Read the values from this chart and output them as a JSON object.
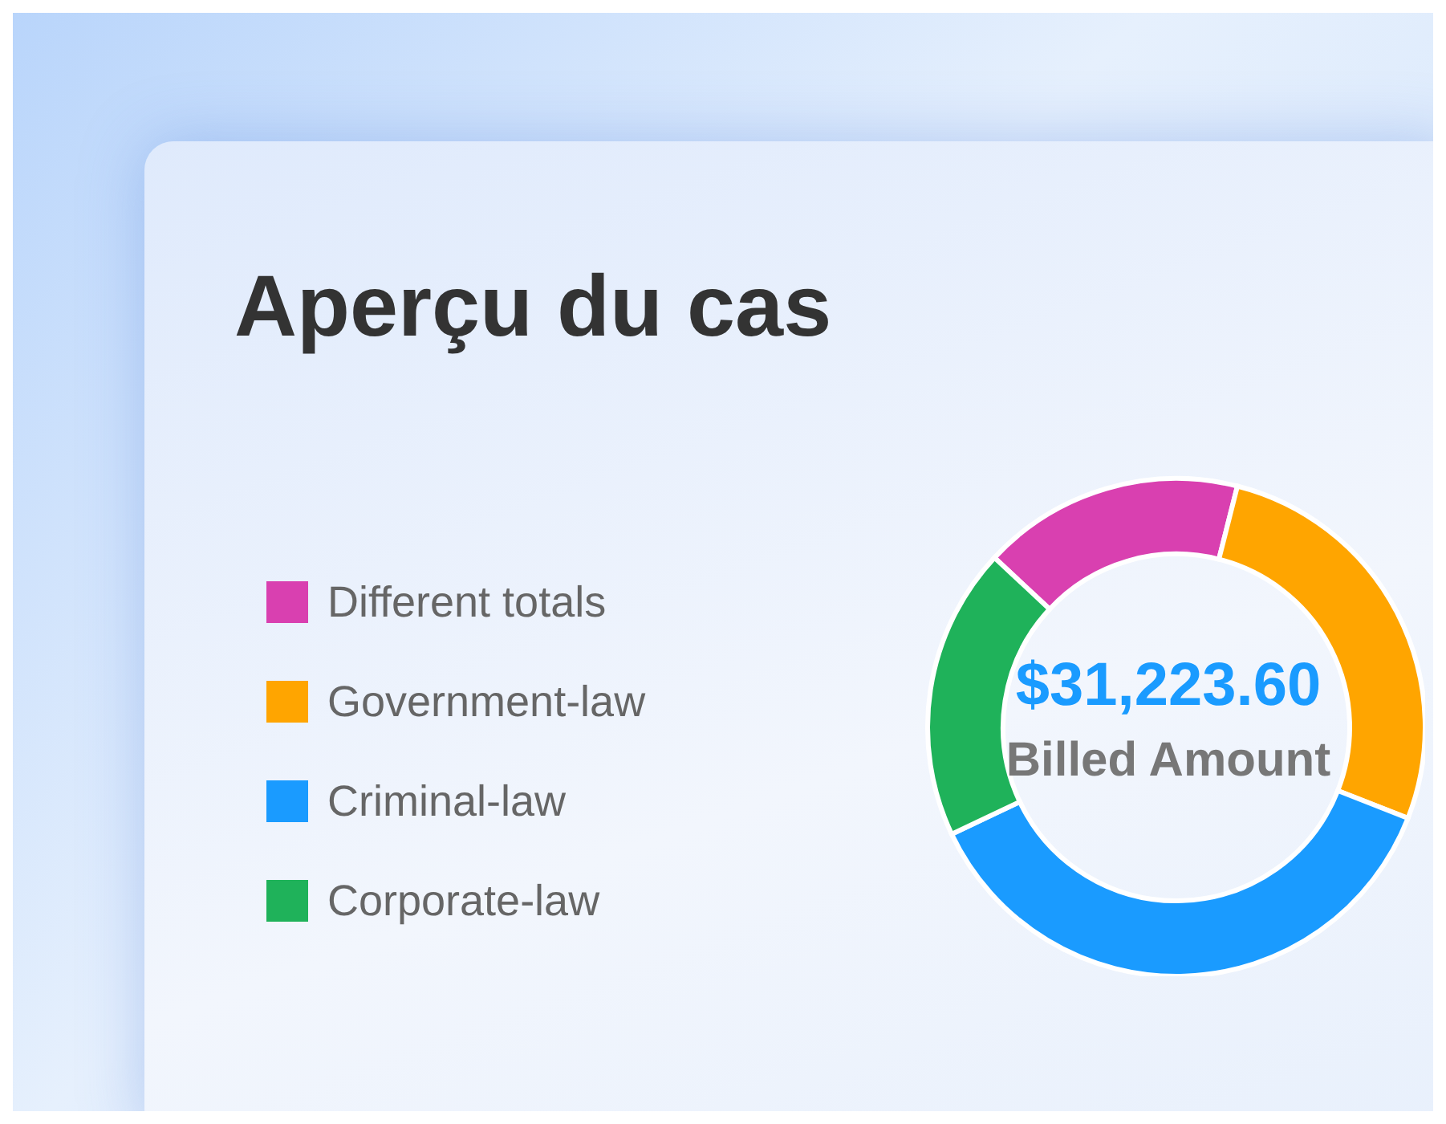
{
  "chart_data": {
    "type": "donut",
    "title": "Aperçu du cas",
    "categories": [
      "Different totals",
      "Government-law",
      "Criminal-law",
      "Corporate-law"
    ],
    "values": [
      17,
      27,
      37,
      19
    ],
    "colors": [
      "#d940b0",
      "#ffa500",
      "#1a9bff",
      "#1fb25a"
    ],
    "annotations": [
      "$31,223.60",
      "Billed Amount"
    ],
    "legend": "left"
  }
}
